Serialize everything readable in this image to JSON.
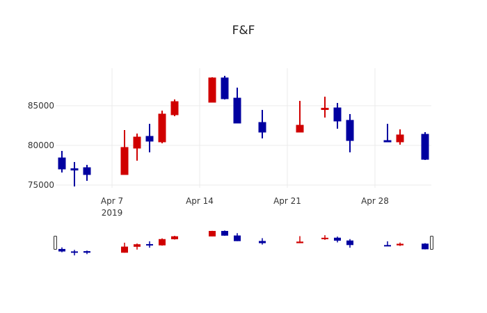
{
  "chart_data": {
    "type": "candlestick",
    "title": "F&F",
    "xlabel": "",
    "ylabel": "",
    "ylim": [
      74500,
      89300
    ],
    "y_ticks": [
      75000,
      80000,
      85000
    ],
    "y_tick_labels": [
      "75000",
      "80000",
      "85000"
    ],
    "x_ticks": [
      {
        "date": "2019-04-07",
        "label": "Apr 7",
        "sublabel": "2019"
      },
      {
        "date": "2019-04-14",
        "label": "Apr 14",
        "sublabel": ""
      },
      {
        "date": "2019-04-21",
        "label": "Apr 21",
        "sublabel": ""
      },
      {
        "date": "2019-04-28",
        "label": "Apr 28",
        "sublabel": ""
      }
    ],
    "x_range": [
      "2019-04-02 12:00",
      "2019-05-02 12:00"
    ],
    "grid": true,
    "rangeslider": true,
    "increasing_color": "#d00000",
    "decreasing_color": "#0000a0",
    "series": [
      {
        "date": "2019-04-03",
        "open": 78420,
        "high": 79300,
        "low": 76580,
        "close": 77020
      },
      {
        "date": "2019-04-04",
        "open": 77060,
        "high": 77900,
        "low": 74820,
        "close": 76970
      },
      {
        "date": "2019-04-05",
        "open": 77190,
        "high": 77540,
        "low": 75530,
        "close": 76320
      },
      {
        "date": "2019-04-08",
        "open": 76320,
        "high": 81930,
        "low": 76320,
        "close": 79740
      },
      {
        "date": "2019-04-09",
        "open": 79650,
        "high": 81490,
        "low": 78070,
        "close": 81050
      },
      {
        "date": "2019-04-10",
        "open": 81140,
        "high": 82720,
        "low": 79120,
        "close": 80530
      },
      {
        "date": "2019-04-11",
        "open": 80440,
        "high": 84380,
        "low": 80260,
        "close": 83950
      },
      {
        "date": "2019-04-12",
        "open": 83860,
        "high": 85790,
        "low": 83680,
        "close": 85520
      },
      {
        "date": "2019-04-15",
        "open": 85440,
        "high": 88590,
        "low": 85440,
        "close": 88510
      },
      {
        "date": "2019-04-16",
        "open": 88510,
        "high": 88770,
        "low": 85790,
        "close": 85880
      },
      {
        "date": "2019-04-17",
        "open": 85960,
        "high": 87280,
        "low": 82810,
        "close": 82810
      },
      {
        "date": "2019-04-19",
        "open": 82890,
        "high": 84470,
        "low": 80880,
        "close": 81670
      },
      {
        "date": "2019-04-22",
        "open": 81670,
        "high": 85610,
        "low": 81670,
        "close": 82540
      },
      {
        "date": "2019-04-24",
        "open": 84600,
        "high": 86140,
        "low": 83510,
        "close": 84690
      },
      {
        "date": "2019-04-25",
        "open": 84730,
        "high": 85350,
        "low": 82100,
        "close": 83070
      },
      {
        "date": "2019-04-26",
        "open": 83160,
        "high": 83950,
        "low": 79120,
        "close": 80610
      },
      {
        "date": "2019-04-29",
        "open": 80610,
        "high": 82720,
        "low": 80530,
        "close": 80530
      },
      {
        "date": "2019-04-30",
        "open": 80440,
        "high": 82020,
        "low": 80090,
        "close": 81320
      },
      {
        "date": "2019-05-02",
        "open": 81400,
        "high": 81670,
        "low": 78160,
        "close": 78240
      }
    ]
  }
}
